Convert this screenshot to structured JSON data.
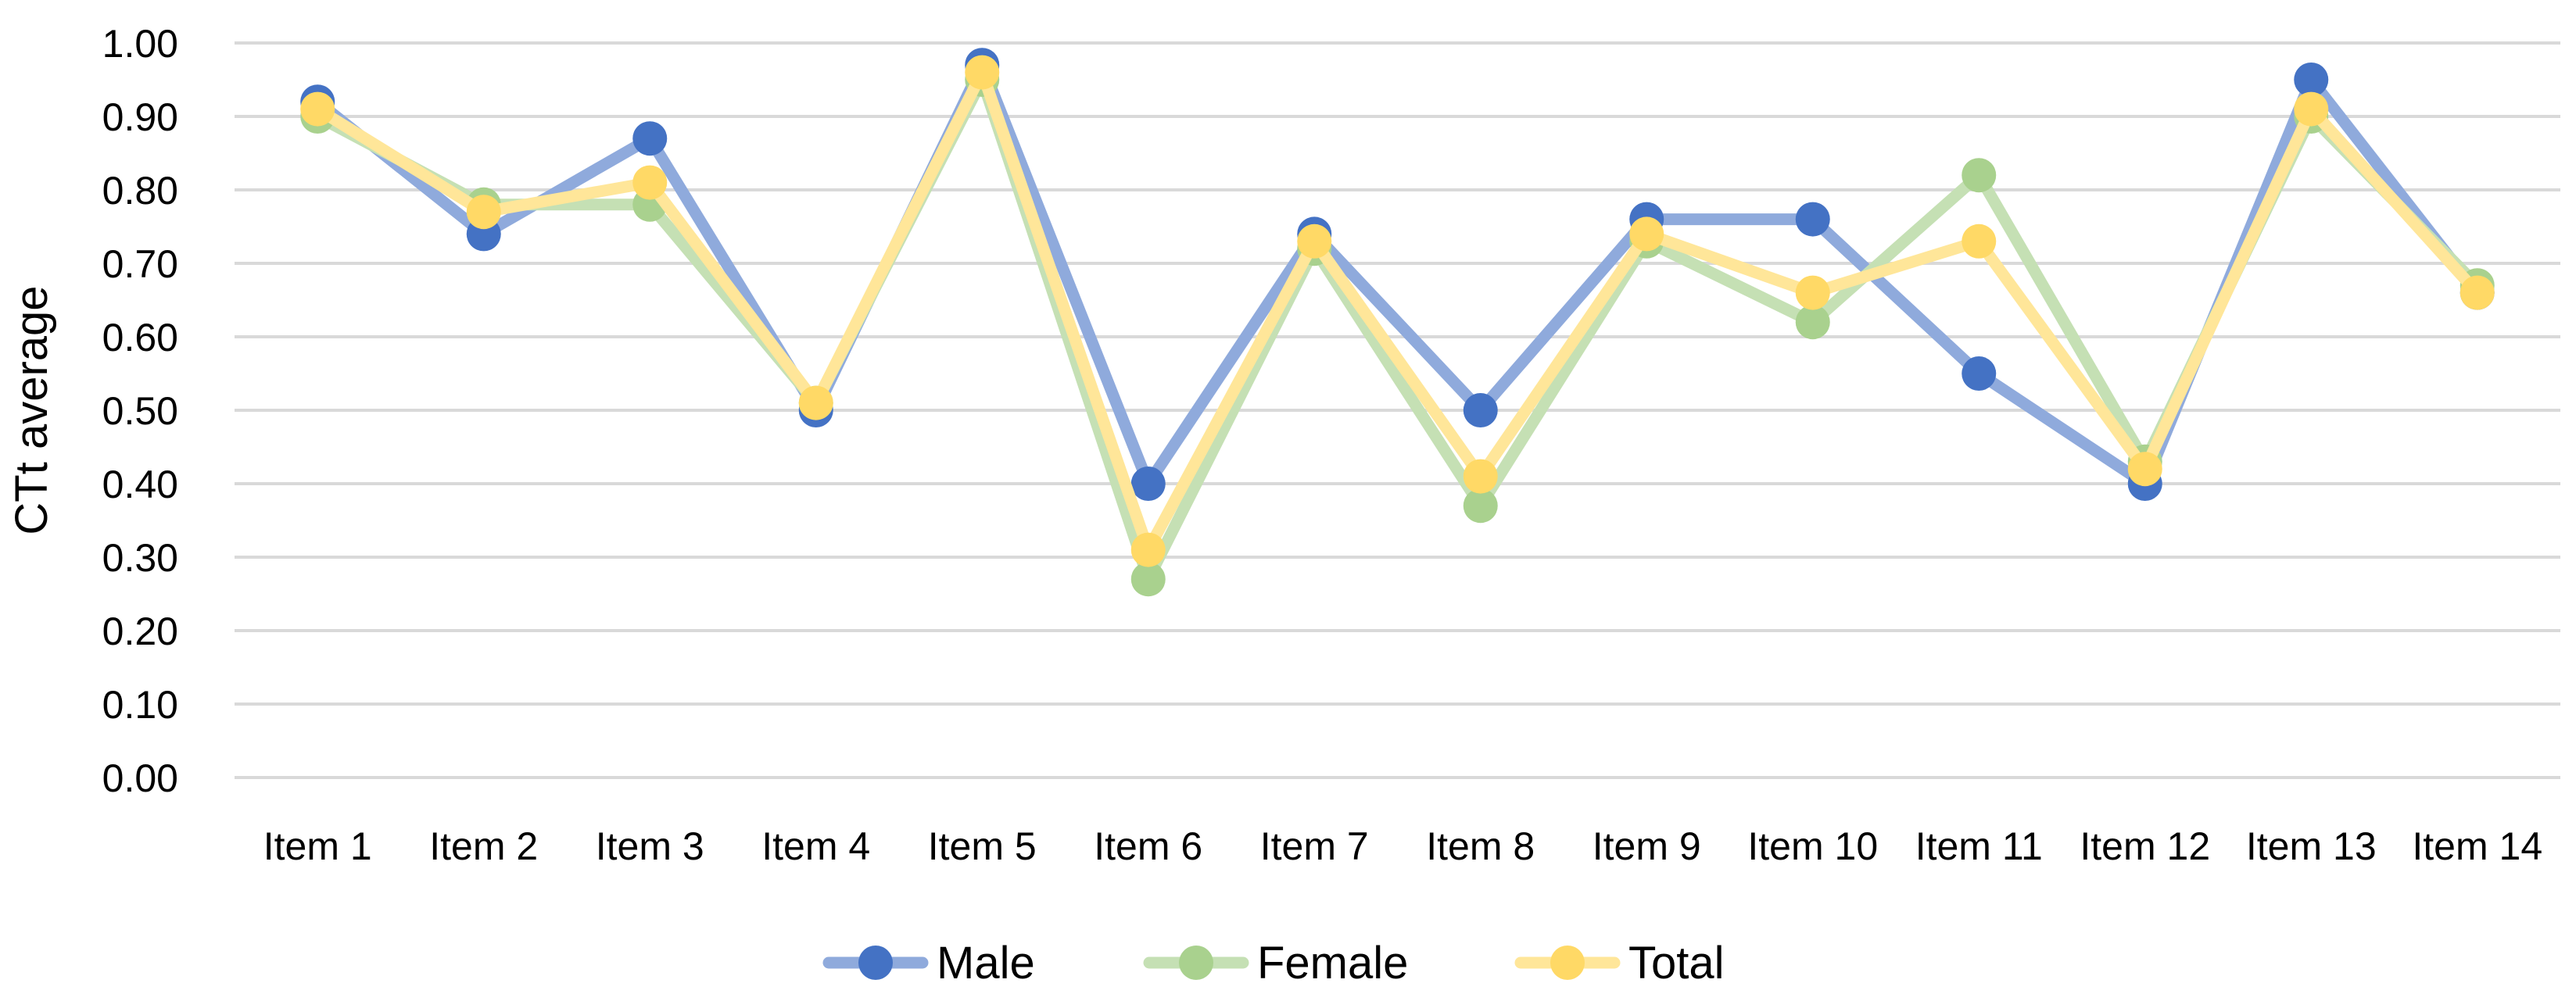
{
  "chart_data": {
    "type": "line",
    "title": "",
    "xlabel": "",
    "ylabel": "CTt average",
    "ylim": [
      0,
      1
    ],
    "yticks": [
      "0.00",
      "0.10",
      "0.20",
      "0.30",
      "0.40",
      "0.50",
      "0.60",
      "0.70",
      "0.80",
      "0.90",
      "1.00"
    ],
    "grid": true,
    "legend_position": "bottom",
    "categories": [
      "Item 1",
      "Item 2",
      "Item 3",
      "Item 4",
      "Item 5",
      "Item 6",
      "Item 7",
      "Item 8",
      "Item 9",
      "Item 10",
      "Item 11",
      "Item 12",
      "Item 13",
      "Item 14"
    ],
    "series": [
      {
        "name": "Male",
        "line_color": "#8FAADC",
        "marker_color": "#4472C4",
        "values": [
          0.92,
          0.74,
          0.87,
          0.5,
          0.97,
          0.4,
          0.74,
          0.5,
          0.76,
          0.76,
          0.55,
          0.4,
          0.95,
          0.66
        ]
      },
      {
        "name": "Female",
        "line_color": "#C5E0B4",
        "marker_color": "#A9D18E",
        "values": [
          0.9,
          0.78,
          0.78,
          0.51,
          0.95,
          0.27,
          0.72,
          0.37,
          0.73,
          0.62,
          0.82,
          0.43,
          0.9,
          0.67
        ]
      },
      {
        "name": "Total",
        "line_color": "#FFE699",
        "marker_color": "#FFD966",
        "values": [
          0.91,
          0.77,
          0.81,
          0.51,
          0.96,
          0.31,
          0.73,
          0.41,
          0.74,
          0.66,
          0.73,
          0.42,
          0.91,
          0.66
        ]
      }
    ]
  }
}
